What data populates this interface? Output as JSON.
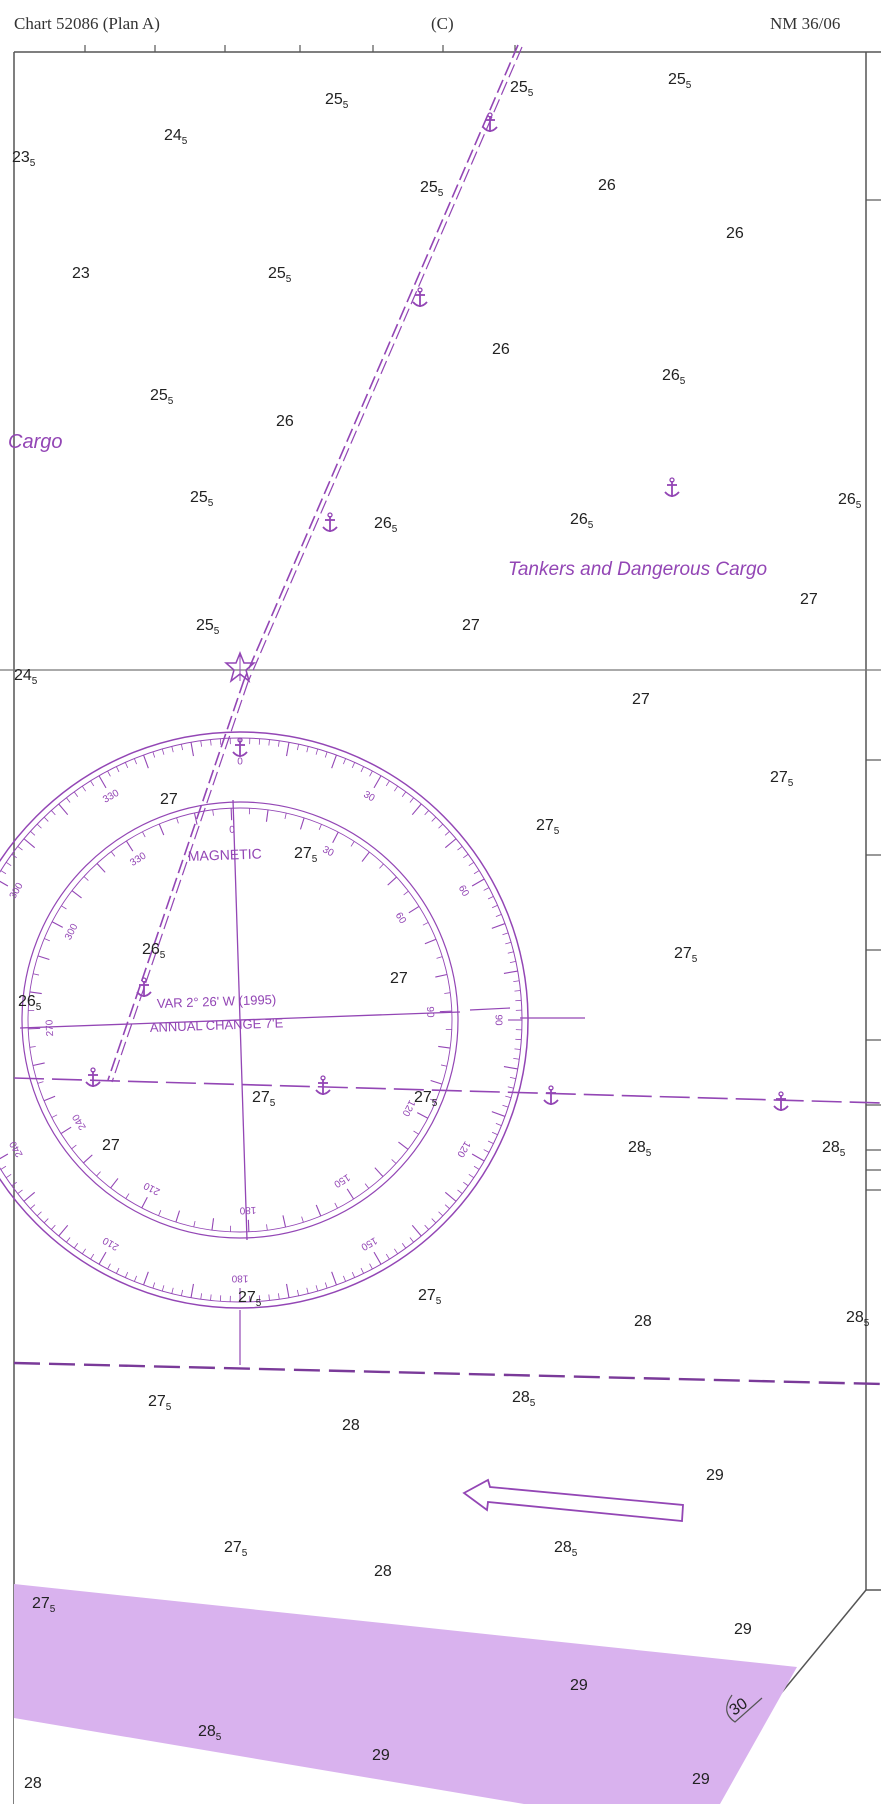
{
  "header": {
    "left": "Chart 52086 (Plan A)",
    "center": "(C)",
    "right": "NM 36/06"
  },
  "labels": {
    "cargo_partial": "Cargo",
    "tankers": "Tankers and Dangerous Cargo",
    "magnetic": "MAGNETIC",
    "variation": "VAR 2° 26' W (1995)",
    "annual_change": "ANNUAL CHANGE 7'E"
  },
  "soundings": [
    {
      "id": "s1",
      "main": "25",
      "sub": "5"
    },
    {
      "id": "s2",
      "main": "25",
      "sub": "5"
    },
    {
      "id": "s3",
      "main": "25",
      "sub": "5"
    },
    {
      "id": "s4",
      "main": "24",
      "sub": "5"
    },
    {
      "id": "s5",
      "main": "23",
      "sub": "5"
    },
    {
      "id": "s6",
      "main": "25",
      "sub": "5"
    },
    {
      "id": "s7",
      "main": "26",
      "sub": ""
    },
    {
      "id": "s8",
      "main": "26",
      "sub": ""
    },
    {
      "id": "s9",
      "main": "23",
      "sub": ""
    },
    {
      "id": "s10",
      "main": "25",
      "sub": "5"
    },
    {
      "id": "s11",
      "main": "26",
      "sub": ""
    },
    {
      "id": "s12",
      "main": "26",
      "sub": "5"
    },
    {
      "id": "s13",
      "main": "25",
      "sub": "5"
    },
    {
      "id": "s14",
      "main": "26",
      "sub": ""
    },
    {
      "id": "s15",
      "main": "25",
      "sub": "5"
    },
    {
      "id": "s16",
      "main": "26",
      "sub": "5"
    },
    {
      "id": "s17",
      "main": "26",
      "sub": "5"
    },
    {
      "id": "s18",
      "main": "26",
      "sub": "5"
    },
    {
      "id": "s19",
      "main": "27",
      "sub": ""
    },
    {
      "id": "s20",
      "main": "25",
      "sub": "5"
    },
    {
      "id": "s21",
      "main": "27",
      "sub": ""
    },
    {
      "id": "s22",
      "main": "24",
      "sub": "5"
    },
    {
      "id": "s23",
      "main": "27",
      "sub": ""
    },
    {
      "id": "s24",
      "main": "27",
      "sub": "5"
    },
    {
      "id": "s25",
      "main": "27",
      "sub": ""
    },
    {
      "id": "s26",
      "main": "27",
      "sub": "5"
    },
    {
      "id": "s27",
      "main": "27",
      "sub": "5"
    },
    {
      "id": "s28",
      "main": "26",
      "sub": "5"
    },
    {
      "id": "s29",
      "main": "27",
      "sub": ""
    },
    {
      "id": "s30",
      "main": "27",
      "sub": "5"
    },
    {
      "id": "s31",
      "main": "26",
      "sub": "5"
    },
    {
      "id": "s32",
      "main": "27",
      "sub": "5"
    },
    {
      "id": "s33",
      "main": "27",
      "sub": "5"
    },
    {
      "id": "s34",
      "main": "27",
      "sub": ""
    },
    {
      "id": "s35",
      "main": "28",
      "sub": "5"
    },
    {
      "id": "s36",
      "main": "28",
      "sub": "5"
    },
    {
      "id": "s37",
      "main": "27",
      "sub": "5"
    },
    {
      "id": "s38",
      "main": "27",
      "sub": "5"
    },
    {
      "id": "s39",
      "main": "28",
      "sub": ""
    },
    {
      "id": "s40",
      "main": "28",
      "sub": "5"
    },
    {
      "id": "s41",
      "main": "27",
      "sub": "5"
    },
    {
      "id": "s42",
      "main": "28",
      "sub": "5"
    },
    {
      "id": "s43",
      "main": "28",
      "sub": ""
    },
    {
      "id": "s44",
      "main": "29",
      "sub": ""
    },
    {
      "id": "s45",
      "main": "27",
      "sub": "5"
    },
    {
      "id": "s46",
      "main": "28",
      "sub": ""
    },
    {
      "id": "s47",
      "main": "28",
      "sub": "5"
    },
    {
      "id": "s48",
      "main": "27",
      "sub": "5"
    },
    {
      "id": "s49",
      "main": "29",
      "sub": ""
    },
    {
      "id": "s50",
      "main": "29",
      "sub": ""
    },
    {
      "id": "s51",
      "main": "28",
      "sub": "5"
    },
    {
      "id": "s52",
      "main": "29",
      "sub": ""
    },
    {
      "id": "s53",
      "main": "28",
      "sub": ""
    },
    {
      "id": "s54",
      "main": "29",
      "sub": ""
    },
    {
      "id": "s55",
      "main": "30",
      "sub": ""
    }
  ],
  "rose_outer_labels": [
    "0",
    "30",
    "60",
    "90",
    "120",
    "150",
    "180",
    "210",
    "240",
    "270",
    "300",
    "330"
  ],
  "rose_inner_labels": [
    "0",
    "30",
    "60",
    "90",
    "120",
    "150",
    "180",
    "210",
    "240",
    "270",
    "300",
    "330"
  ],
  "colors": {
    "purple": "#9346b5",
    "purple_fill": "#d9b2ee",
    "grid": "#666666",
    "text": "#222222"
  },
  "icons": [
    "anchor-icon",
    "star-light-icon",
    "traffic-direction-arrow-icon"
  ]
}
